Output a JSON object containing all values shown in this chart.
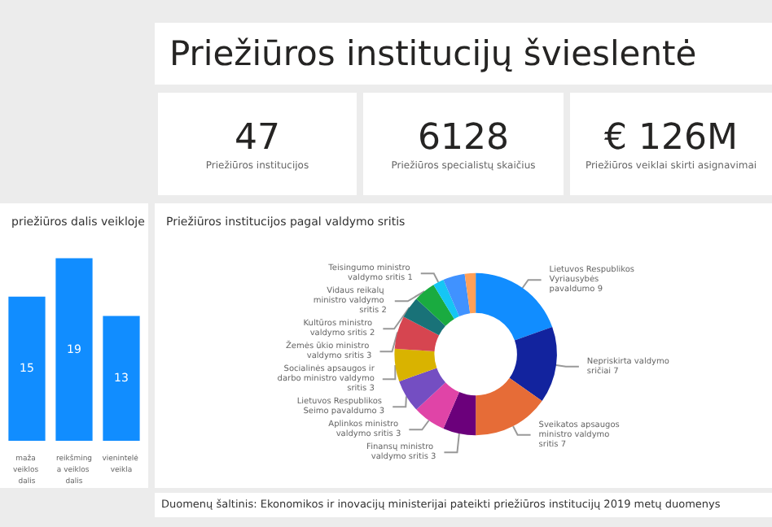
{
  "chart_data": [
    {
      "type": "other",
      "title": "Priežiūros institucijų švieslentė"
    },
    {
      "type": "other",
      "title": "47",
      "subtitle": "Priežiūros institucijos"
    },
    {
      "type": "other",
      "title": "6128",
      "subtitle": "Priežiūros specialistų skaičius"
    },
    {
      "type": "other",
      "title": "€ 126M",
      "subtitle": "Priežiūros veiklai skirti asignavimai"
    },
    {
      "type": "bar",
      "title": "priežiūros dalis veikloje",
      "categories": [
        "maža veiklos dalis",
        "reikšminga veiklos dalis",
        "vienintelė veikla"
      ],
      "values": [
        15,
        19,
        13
      ],
      "color": "#118dff",
      "data_labels": true
    },
    {
      "type": "donut",
      "title": "Priežiūros institucijos pagal valdymo sritis",
      "categories": [
        "Lietuvos Respublikos Vyriausybės pavaldumo",
        "Nepriskirta valdymo sričiai",
        "Sveikatos apsaugos ministro valdymo sritis",
        "Finansų ministro valdymo sritis",
        "Aplinkos ministro valdymo sritis",
        "Lietuvos Respublikos Seimo pavaldumo",
        "Socialinės apsaugos ir darbo ministro valdymo sritis",
        "Žemės ūkio ministro valdymo sritis",
        "Kultūros ministro valdymo sritis",
        "Vidaus reikalų ministro valdymo sritis",
        "Teisingumo ministro valdymo sritis",
        null,
        null
      ],
      "values": [
        9,
        7,
        7,
        3,
        3,
        3,
        3,
        3,
        2,
        2,
        1,
        2,
        1
      ],
      "value_labels": [
        "9",
        "7",
        "7",
        "3",
        "3",
        "3",
        "3",
        "3",
        "2",
        "2",
        "1",
        null,
        null
      ],
      "colors": [
        "#118dff",
        "#12239e",
        "#e66c37",
        "#6b007b",
        "#e044a7",
        "#744ec2",
        "#d9b300",
        "#d64550",
        "#197278",
        "#1aab40",
        "#15c6f4",
        "#4092ff",
        "#ffa058"
      ],
      "annotations": [
        "Duomenų šaltinis: Ekonomikos ir inovacijų ministerijai pateikti priežiūros institucijų 2019 metų duomenys"
      ]
    }
  ]
}
